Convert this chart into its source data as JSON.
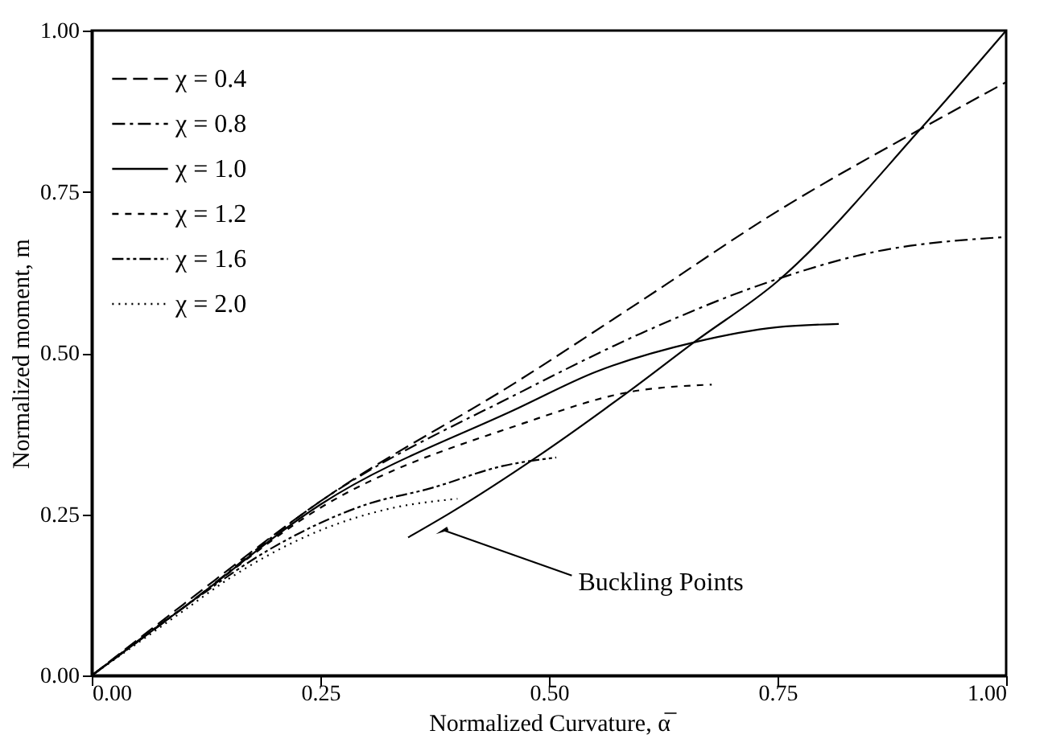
{
  "chart_data": {
    "type": "line",
    "xlabel": "Normalized Curvature,  α̅",
    "ylabel": "Normalized moment,  m",
    "xlim": [
      0,
      1
    ],
    "ylim": [
      0,
      1
    ],
    "xticks": [
      {
        "value": 0,
        "label": "0.00"
      },
      {
        "value": 0.25,
        "label": "0.25"
      },
      {
        "value": 0.5,
        "label": "0.50"
      },
      {
        "value": 0.75,
        "label": "0.75"
      },
      {
        "value": 1,
        "label": "1.00"
      }
    ],
    "yticks": [
      {
        "value": 0,
        "label": "0.00"
      },
      {
        "value": 0.25,
        "label": "0.25"
      },
      {
        "value": 0.5,
        "label": "0.50"
      },
      {
        "value": 0.75,
        "label": "0.75"
      },
      {
        "value": 1,
        "label": "1.00"
      }
    ],
    "grid": false,
    "legend": "top left",
    "marker": "none",
    "series": [
      {
        "name": "χ = 0.4",
        "color": "#000000",
        "line_style": "dashed",
        "x": [
          0,
          0.1,
          0.25,
          0.47,
          0.6,
          0.75,
          0.91,
          1.0
        ],
        "values": [
          0,
          0.11,
          0.27,
          0.46,
          0.58,
          0.72,
          0.85,
          0.92
        ]
      },
      {
        "name": "χ = 0.8",
        "color": "#000000",
        "line_style": "dashdot",
        "x": [
          0,
          0.1,
          0.25,
          0.47,
          0.6,
          0.74,
          0.85,
          1.0
        ],
        "values": [
          0,
          0.105,
          0.27,
          0.44,
          0.53,
          0.61,
          0.655,
          0.68
        ]
      },
      {
        "name": "χ = 1.0",
        "color": "#000000",
        "line_style": "solid",
        "x": [
          0,
          0.1,
          0.25,
          0.47,
          0.55,
          0.66,
          0.75,
          0.817
        ],
        "values": [
          0,
          0.105,
          0.265,
          0.417,
          0.47,
          0.517,
          0.54,
          0.545
        ]
      },
      {
        "name": "χ = 1.2",
        "color": "#000000",
        "line_style": "dashed",
        "x": [
          0,
          0.1,
          0.25,
          0.47,
          0.59,
          0.678
        ],
        "values": [
          0,
          0.105,
          0.26,
          0.39,
          0.44,
          0.451
        ]
      },
      {
        "name": "χ = 1.6",
        "color": "#000000",
        "line_style": "dashdot",
        "x": [
          0,
          0.1,
          0.2,
          0.3,
          0.37,
          0.45,
          0.508
        ],
        "values": [
          0,
          0.105,
          0.2,
          0.265,
          0.29,
          0.325,
          0.338
        ]
      },
      {
        "name": "χ = 2.0",
        "color": "#000000",
        "line_style": "dotted",
        "x": [
          0,
          0.1,
          0.15,
          0.25,
          0.33,
          0.4
        ],
        "values": [
          0,
          0.1,
          0.15,
          0.225,
          0.26,
          0.274
        ]
      },
      {
        "color": "#000000",
        "line_style": "solid",
        "x": [
          0.346,
          0.392,
          0.486,
          0.587,
          0.659,
          0.749,
          0.908,
          1.0
        ],
        "values": [
          0.214,
          0.252,
          0.338,
          0.44,
          0.517,
          0.61,
          0.85,
          1.0
        ]
      }
    ],
    "annotations": [
      {
        "text": "Buckling Points",
        "x": 0.385,
        "y": 0.225
      }
    ]
  }
}
